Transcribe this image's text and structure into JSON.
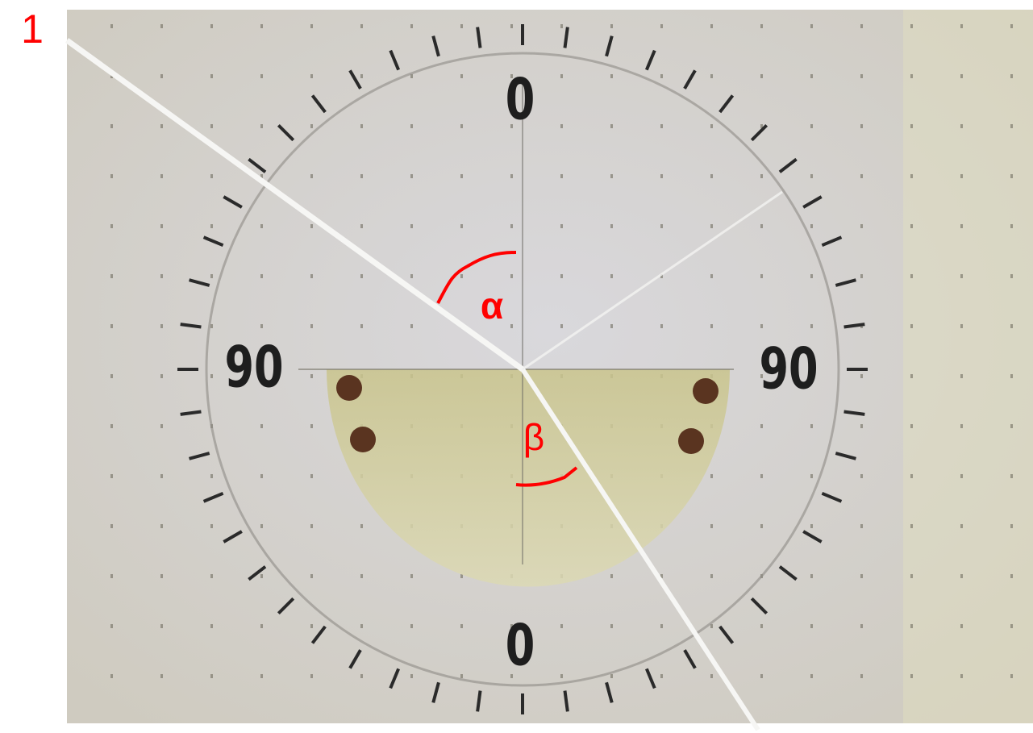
{
  "figure_label": "1",
  "scale": {
    "top": "0",
    "left": "90",
    "right": "90",
    "bottom": "0"
  },
  "angles": {
    "alpha": "α",
    "beta": "β"
  }
}
